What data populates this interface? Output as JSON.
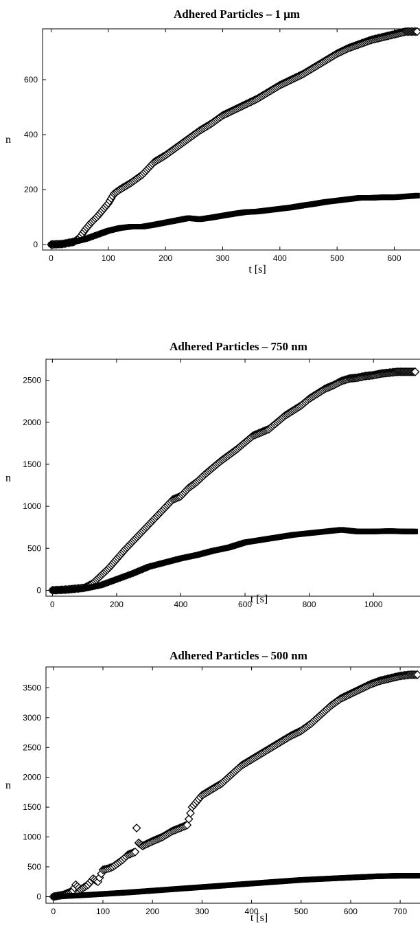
{
  "chart_data": [
    {
      "type": "scatter",
      "title": "Adhered Particles – 1 μm",
      "xlabel": "t [s]",
      "ylabel": "n",
      "xlim": [
        -15,
        645
      ],
      "ylim": [
        -20,
        785
      ],
      "xticks": [
        0,
        100,
        200,
        300,
        400,
        500,
        600
      ],
      "yticks": [
        0,
        200,
        400,
        600
      ],
      "grid": false,
      "series": [
        {
          "marker": "diamond-outline",
          "x": [
            0,
            20,
            40,
            50,
            60,
            70,
            80,
            90,
            100,
            110,
            120,
            140,
            160,
            180,
            200,
            220,
            240,
            260,
            280,
            300,
            320,
            340,
            360,
            380,
            400,
            420,
            440,
            460,
            480,
            500,
            520,
            540,
            560,
            580,
            600,
            620,
            640
          ],
          "y": [
            0,
            2,
            10,
            25,
            55,
            80,
            100,
            125,
            150,
            185,
            200,
            225,
            255,
            300,
            325,
            355,
            385,
            415,
            440,
            470,
            490,
            510,
            530,
            555,
            580,
            600,
            620,
            645,
            670,
            695,
            715,
            730,
            745,
            755,
            765,
            775,
            775
          ]
        },
        {
          "marker": "square-filled",
          "x": [
            0,
            20,
            40,
            60,
            80,
            100,
            120,
            140,
            160,
            180,
            200,
            220,
            240,
            260,
            280,
            300,
            320,
            340,
            360,
            380,
            400,
            420,
            440,
            460,
            480,
            500,
            520,
            540,
            560,
            580,
            600,
            620,
            640
          ],
          "y": [
            0,
            2,
            10,
            20,
            35,
            50,
            60,
            65,
            65,
            72,
            80,
            88,
            96,
            92,
            98,
            105,
            112,
            118,
            120,
            125,
            130,
            135,
            142,
            148,
            155,
            160,
            165,
            170,
            170,
            172,
            172,
            175,
            178
          ]
        }
      ]
    },
    {
      "type": "scatter",
      "title": "Adhered Particles – 750 nm",
      "xlabel": "t [s]",
      "ylabel": "n",
      "xlim": [
        -20,
        1145
      ],
      "ylim": [
        -70,
        2750
      ],
      "xticks": [
        0,
        200,
        400,
        600,
        800,
        1000
      ],
      "yticks": [
        0,
        500,
        1000,
        1500,
        2000,
        2500
      ],
      "grid": false,
      "series": [
        {
          "marker": "diamond-outline",
          "x": [
            0,
            50,
            100,
            125,
            150,
            175,
            200,
            225,
            250,
            275,
            300,
            325,
            350,
            375,
            400,
            425,
            450,
            475,
            500,
            525,
            550,
            575,
            600,
            625,
            650,
            675,
            700,
            725,
            750,
            775,
            800,
            825,
            850,
            875,
            900,
            925,
            950,
            975,
            1000,
            1025,
            1050,
            1075,
            1100,
            1130
          ],
          "y": [
            0,
            10,
            30,
            80,
            170,
            260,
            370,
            480,
            580,
            680,
            780,
            880,
            980,
            1080,
            1120,
            1220,
            1290,
            1380,
            1460,
            1540,
            1610,
            1680,
            1760,
            1840,
            1880,
            1920,
            2000,
            2080,
            2140,
            2200,
            2280,
            2340,
            2400,
            2440,
            2490,
            2520,
            2530,
            2550,
            2560,
            2580,
            2590,
            2600,
            2600,
            2600
          ]
        },
        {
          "marker": "square-filled",
          "x": [
            0,
            50,
            100,
            150,
            200,
            250,
            300,
            350,
            400,
            450,
            500,
            550,
            600,
            650,
            700,
            750,
            800,
            850,
            900,
            950,
            1000,
            1050,
            1100,
            1130
          ],
          "y": [
            0,
            5,
            20,
            60,
            130,
            200,
            280,
            330,
            380,
            420,
            470,
            510,
            570,
            600,
            630,
            660,
            680,
            700,
            720,
            700,
            700,
            705,
            700,
            700
          ]
        }
      ]
    },
    {
      "type": "scatter",
      "title": "Adhered Particles – 500 nm",
      "xlabel": "t [s]",
      "ylabel": "n",
      "xlim": [
        -15,
        740
      ],
      "ylim": [
        -110,
        3850
      ],
      "xticks": [
        0,
        100,
        200,
        300,
        400,
        500,
        600,
        700
      ],
      "yticks": [
        0,
        500,
        1000,
        1500,
        2000,
        2500,
        3000,
        3500
      ],
      "grid": false,
      "series": [
        {
          "marker": "diamond-outline",
          "x": [
            0,
            20,
            40,
            45,
            55,
            70,
            80,
            90,
            100,
            110,
            120,
            130,
            140,
            150,
            165,
            168,
            172,
            180,
            200,
            220,
            240,
            255,
            270,
            280,
            290,
            300,
            320,
            340,
            360,
            380,
            400,
            420,
            440,
            460,
            480,
            500,
            520,
            540,
            560,
            580,
            600,
            620,
            640,
            660,
            680,
            700,
            720,
            735
          ],
          "y": [
            0,
            30,
            100,
            200,
            120,
            200,
            300,
            250,
            450,
            470,
            500,
            560,
            620,
            700,
            750,
            1150,
            900,
            850,
            930,
            1000,
            1100,
            1150,
            1200,
            1500,
            1600,
            1700,
            1800,
            1900,
            2050,
            2200,
            2300,
            2400,
            2500,
            2600,
            2700,
            2780,
            2900,
            3050,
            3200,
            3320,
            3400,
            3480,
            3560,
            3620,
            3660,
            3700,
            3720,
            3720
          ]
        },
        {
          "marker": "square-filled",
          "x": [
            0,
            50,
            100,
            150,
            200,
            250,
            300,
            350,
            400,
            450,
            500,
            550,
            600,
            650,
            700,
            735
          ],
          "y": [
            0,
            20,
            45,
            70,
            100,
            130,
            160,
            190,
            220,
            250,
            280,
            300,
            320,
            340,
            350,
            350
          ]
        }
      ]
    }
  ]
}
